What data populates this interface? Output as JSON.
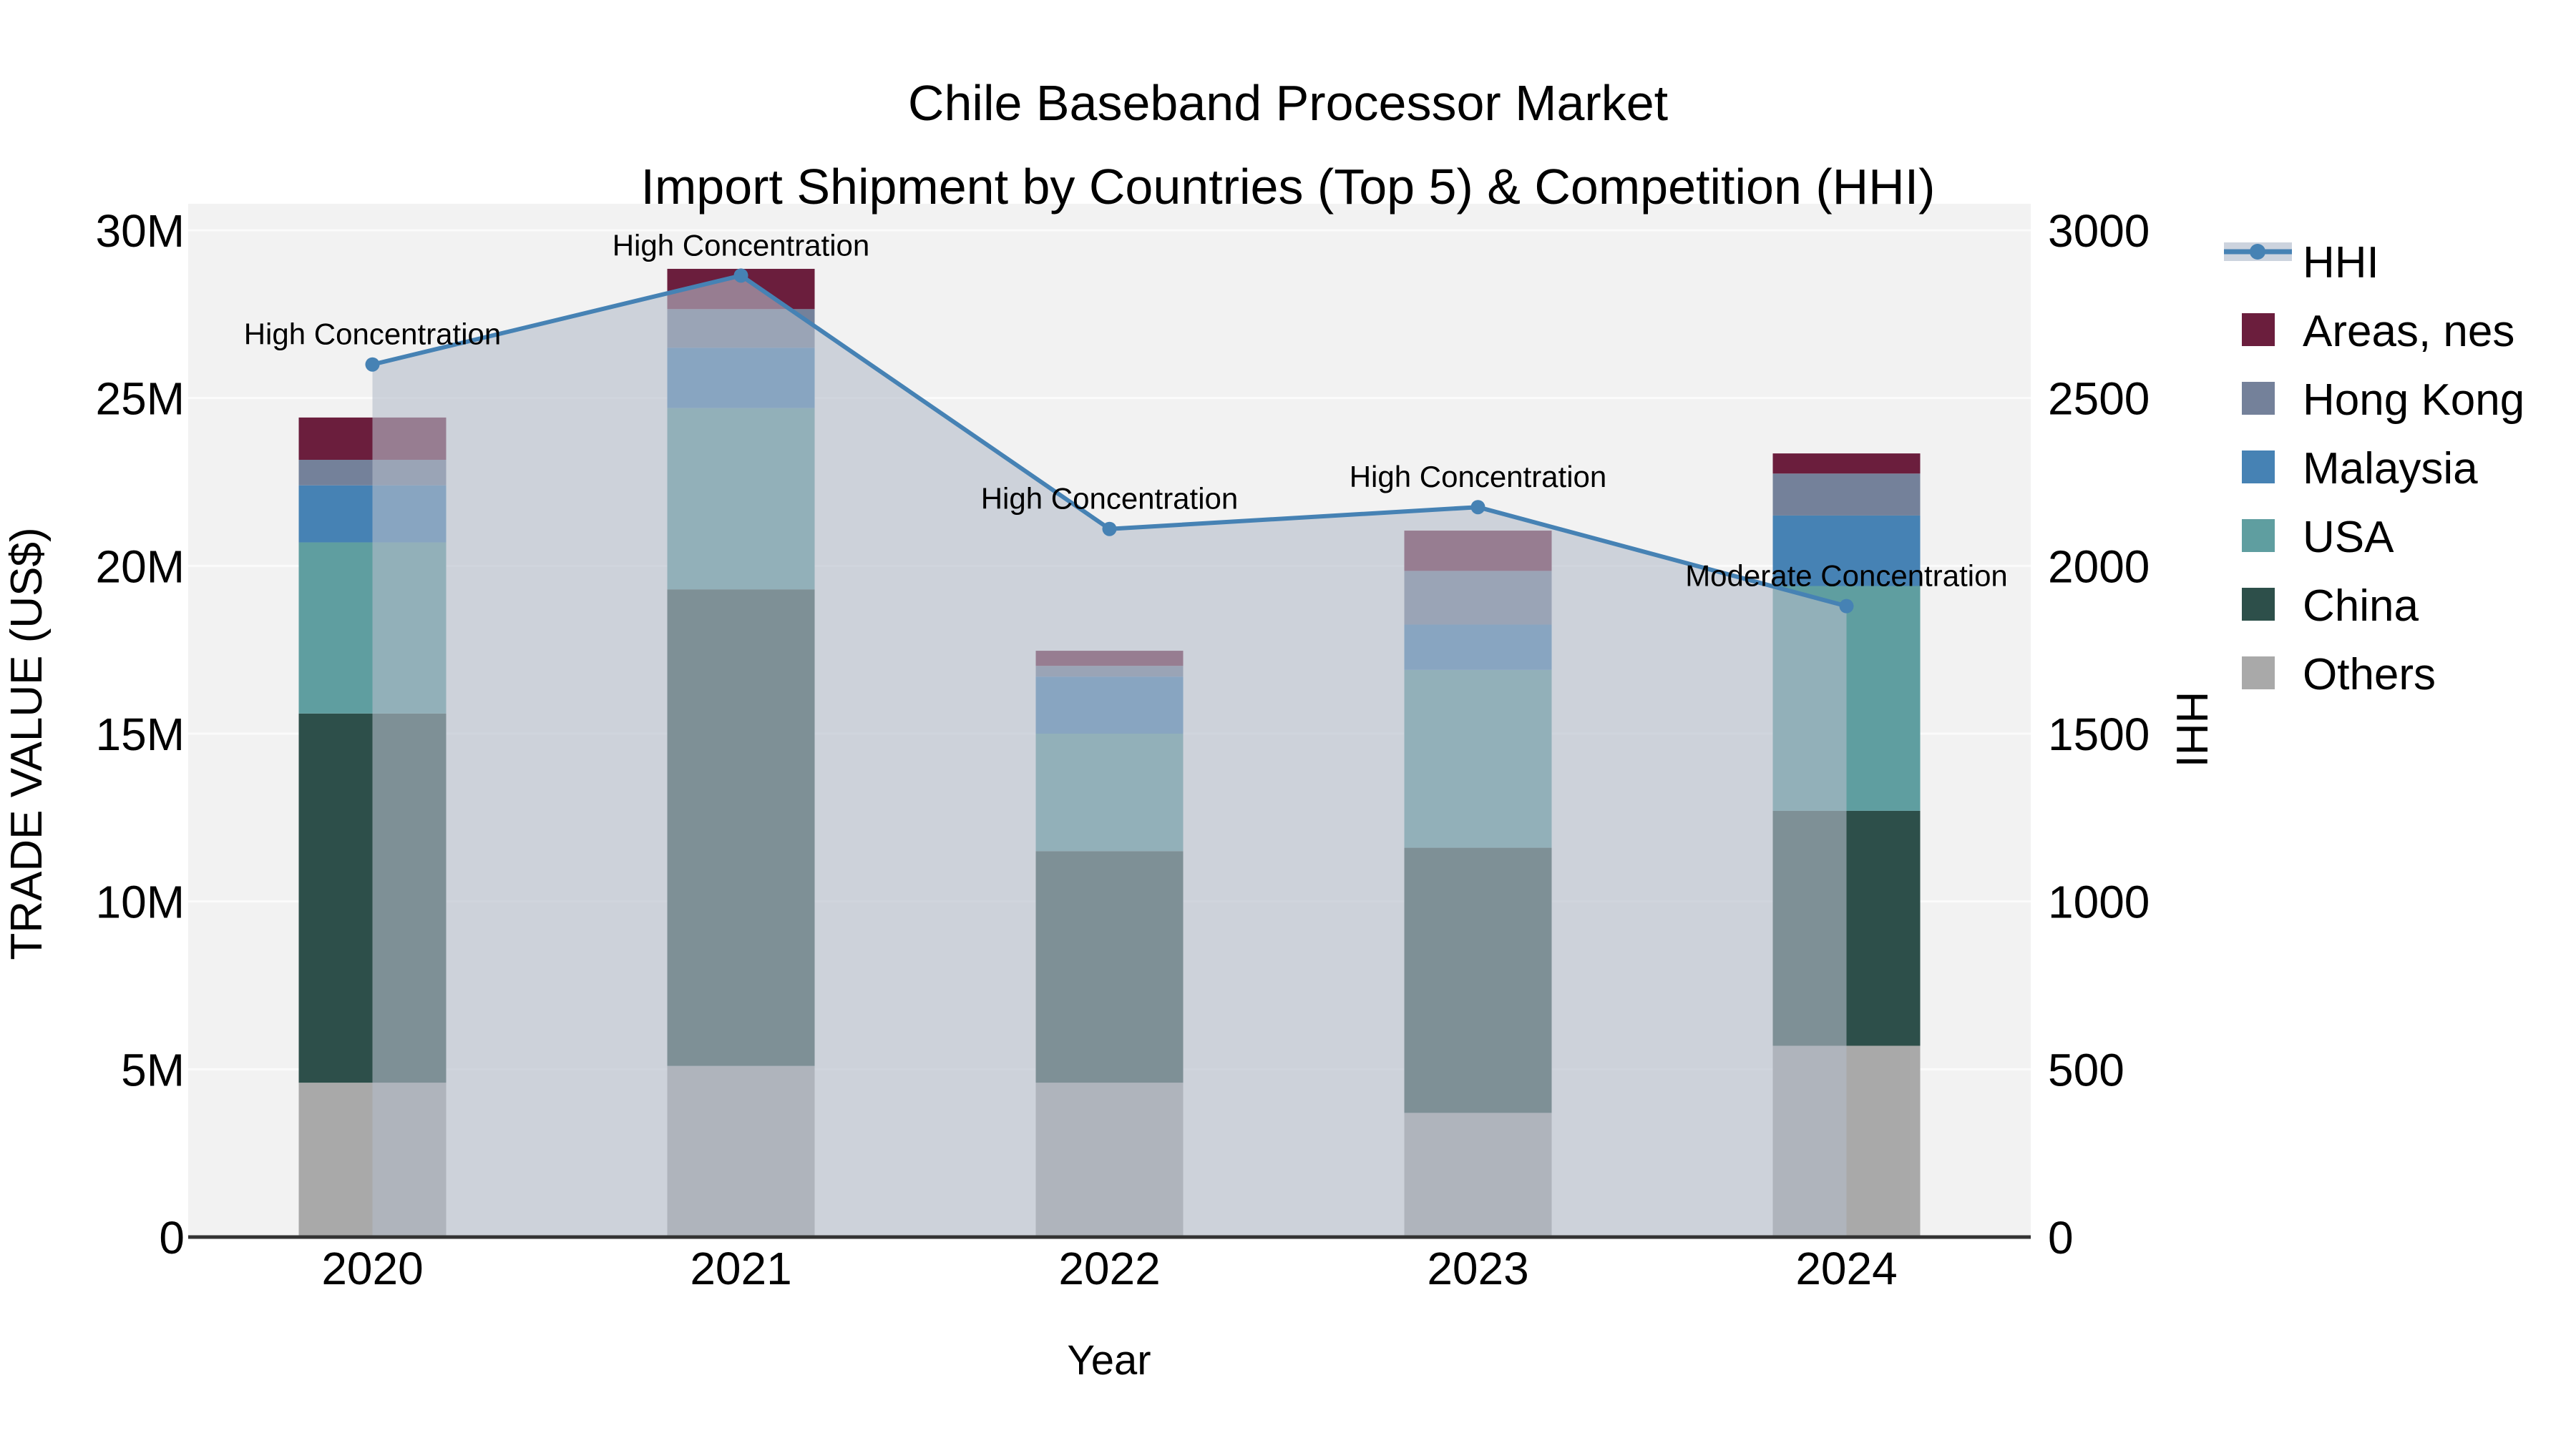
{
  "chart_data": {
    "type": "bar",
    "combo": "stacked-bar-with-line",
    "title": "Chile Baseband Processor Market",
    "subtitle": "Import Shipment by Countries (Top 5) & Competition (HHI)",
    "xlabel": "Year",
    "ylabel_left": "TRADE VALUE (US$)",
    "ylabel_right": "HHI",
    "categories": [
      "2020",
      "2021",
      "2022",
      "2023",
      "2024"
    ],
    "bar_value_unit": "millions US$",
    "series": [
      {
        "name": "Others",
        "color": "#a9a9a9",
        "values": [
          4.6,
          5.1,
          4.6,
          3.7,
          5.7
        ]
      },
      {
        "name": "China",
        "color": "#2d4f4a",
        "values": [
          11.0,
          14.2,
          6.9,
          7.9,
          7.0
        ]
      },
      {
        "name": "USA",
        "color": "#5f9ea0",
        "values": [
          5.1,
          5.4,
          3.5,
          5.3,
          6.7
        ]
      },
      {
        "name": "Malaysia",
        "color": "#4682b4",
        "values": [
          1.7,
          1.8,
          1.7,
          1.35,
          2.1
        ]
      },
      {
        "name": "Hong Kong",
        "color": "#74819a",
        "values": [
          0.76,
          1.15,
          0.32,
          1.6,
          1.25
        ]
      },
      {
        "name": "Areas, nes",
        "color": "#6b1e3d",
        "values": [
          1.26,
          1.2,
          0.45,
          1.2,
          0.6
        ]
      }
    ],
    "line": {
      "name": "HHI",
      "color": "#4682b4",
      "area_fill": "rgba(180,189,202,0.6)",
      "values": [
        2600,
        2865,
        2110,
        2175,
        1880
      ],
      "annotations": [
        "High Concentration",
        "High Concentration",
        "High Concentration",
        "High Concentration",
        "Moderate Concentration"
      ]
    },
    "axes": {
      "left": {
        "ticks": [
          "0",
          "5M",
          "10M",
          "15M",
          "20M",
          "25M",
          "30M"
        ],
        "tick_values": [
          0,
          5,
          10,
          15,
          20,
          25,
          30
        ],
        "max": 30
      },
      "right": {
        "ticks": [
          "0",
          "500",
          "1000",
          "1500",
          "2000",
          "2500",
          "3000"
        ],
        "tick_values": [
          0,
          500,
          1000,
          1500,
          2000,
          2500,
          3000
        ],
        "max": 3000
      }
    },
    "legend": [
      "HHI",
      "Areas, nes",
      "Hong Kong",
      "Malaysia",
      "USA",
      "China",
      "Others"
    ],
    "plot_background": "#f2f2f2",
    "gridline_color": "#fbfbfb",
    "legend_area_swatch": "#ccd3de",
    "annotation_color": "#1a1a1a"
  }
}
